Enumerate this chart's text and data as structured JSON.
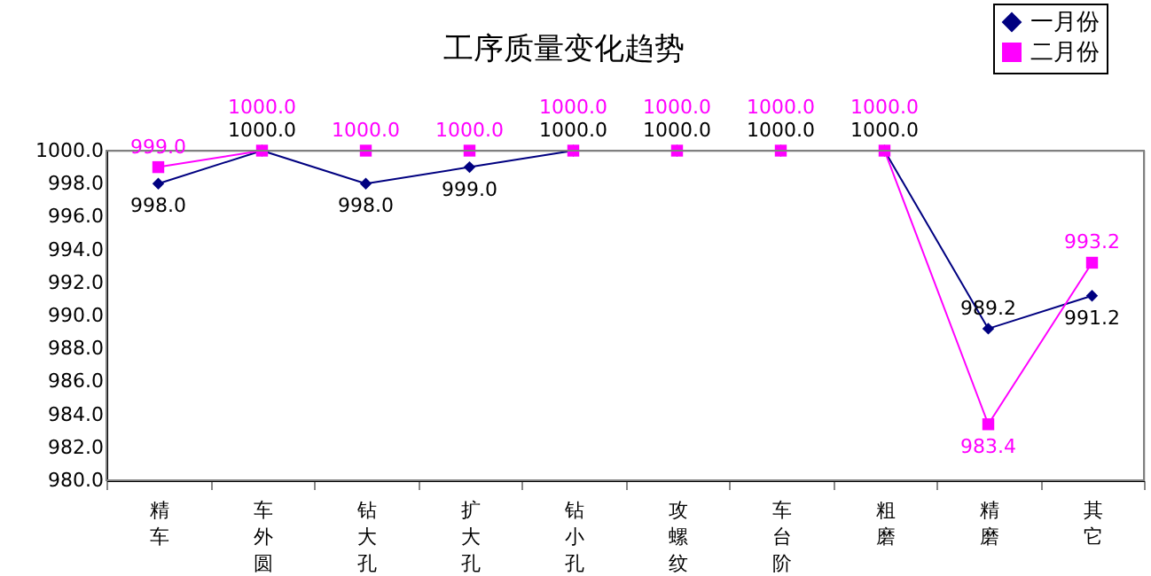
{
  "chart_data": {
    "type": "line",
    "title": "工序质量变化趋势",
    "categories": [
      "精车",
      "车外圆",
      "钻大孔",
      "扩大孔",
      "钻小孔",
      "攻螺纹",
      "车台阶",
      "粗磨",
      "精磨",
      "其它"
    ],
    "series": [
      {
        "name": "一月份",
        "color": "#000080",
        "marker": "diamond",
        "values": [
          998.0,
          1000.0,
          998.0,
          999.0,
          1000.0,
          1000.0,
          1000.0,
          1000.0,
          989.2,
          991.2
        ],
        "value_labels": [
          "998.0",
          "1000.0",
          "998.0",
          "999.0",
          "1000.0",
          "1000.0",
          "1000.0",
          "1000.0",
          "989.2",
          "991.2"
        ]
      },
      {
        "name": "二月份",
        "color": "#ff00ff",
        "marker": "square",
        "values": [
          999.0,
          1000.0,
          1000.0,
          1000.0,
          1000.0,
          1000.0,
          1000.0,
          1000.0,
          983.4,
          993.2
        ],
        "value_labels": [
          "999.0",
          "1000.0",
          "1000.0",
          "1000.0",
          "1000.0",
          "1000.0",
          "1000.0",
          "1000.0",
          "983.4",
          "993.2"
        ]
      }
    ],
    "ylim": [
      980.0,
      1000.0
    ],
    "yticks": [
      {
        "value": 980,
        "label": "980.0"
      },
      {
        "value": 982,
        "label": "982.0"
      },
      {
        "value": 984,
        "label": "984.0"
      },
      {
        "value": 986,
        "label": "986.0"
      },
      {
        "value": 988,
        "label": "988.0"
      },
      {
        "value": 990,
        "label": "990.0"
      },
      {
        "value": 992,
        "label": "992.0"
      },
      {
        "value": 994,
        "label": "994.0"
      },
      {
        "value": 996,
        "label": "996.0"
      },
      {
        "value": 998,
        "label": "998.0"
      },
      {
        "value": 1000,
        "label": "1000.0"
      }
    ],
    "grid": false,
    "legend": "top right",
    "line_style": "solid"
  }
}
